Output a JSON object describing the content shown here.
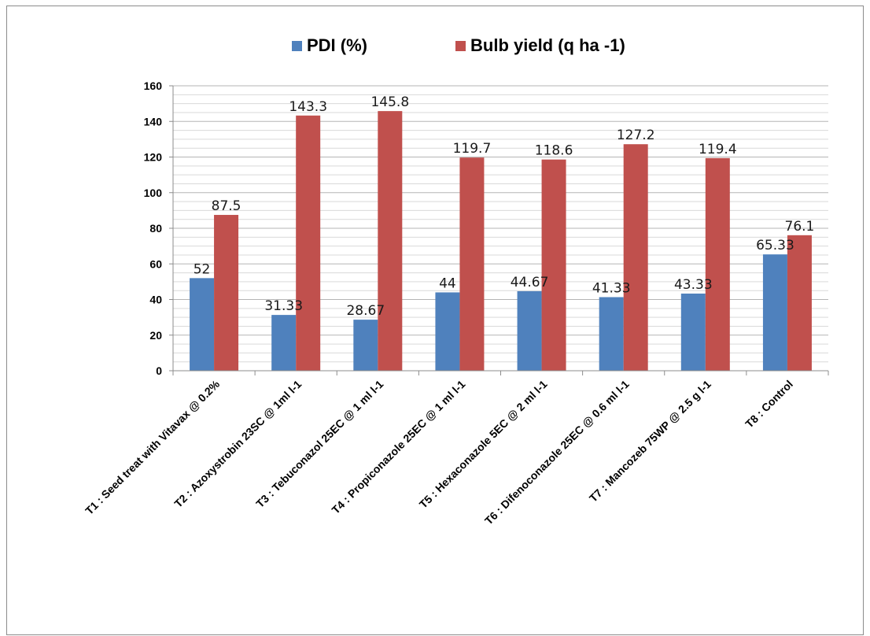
{
  "chart_data": {
    "type": "bar",
    "categories": [
      "T1 : Seed treat with Vitavax @ 0.2%",
      "T2 :  Azoxystrobin 23SC @ 1ml l-1",
      "T3 : Tebuconazol 25EC @ 1 ml l-1",
      "T4 :  Propiconazole 25EC @ 1 ml l-1",
      "T5 :  Hexaconazole 5EC @ 2 ml l-1",
      "T6 : Difenoconazole 25EC @ 0.6 ml l-1",
      "T7 :  Mancozeb 75WP @ 2.5 g l-1",
      "T8 : Control"
    ],
    "series": [
      {
        "name": "PDI (%)",
        "color": "#4f81bd",
        "values": [
          52,
          31.33,
          28.67,
          44,
          44.67,
          41.33,
          43.33,
          65.33
        ],
        "labels": [
          "52",
          "31.33",
          "28.67",
          "44",
          "44.67",
          "41.33",
          "43.33",
          "65.33"
        ]
      },
      {
        "name": "Bulb yield (q ha -1)",
        "color": "#c0504d",
        "values": [
          87.5,
          143.3,
          145.8,
          119.7,
          118.6,
          127.2,
          119.4,
          76.1
        ],
        "labels": [
          "87.5",
          "143.3",
          "145.8",
          "119.7",
          "118.6",
          "127.2",
          "119.4",
          "76.1"
        ]
      }
    ],
    "yticks": [
      "0",
      "20",
      "40",
      "60",
      "80",
      "100",
      "120",
      "140",
      "160"
    ],
    "ylim": [
      0,
      160
    ],
    "grid": true,
    "legend": "top"
  }
}
